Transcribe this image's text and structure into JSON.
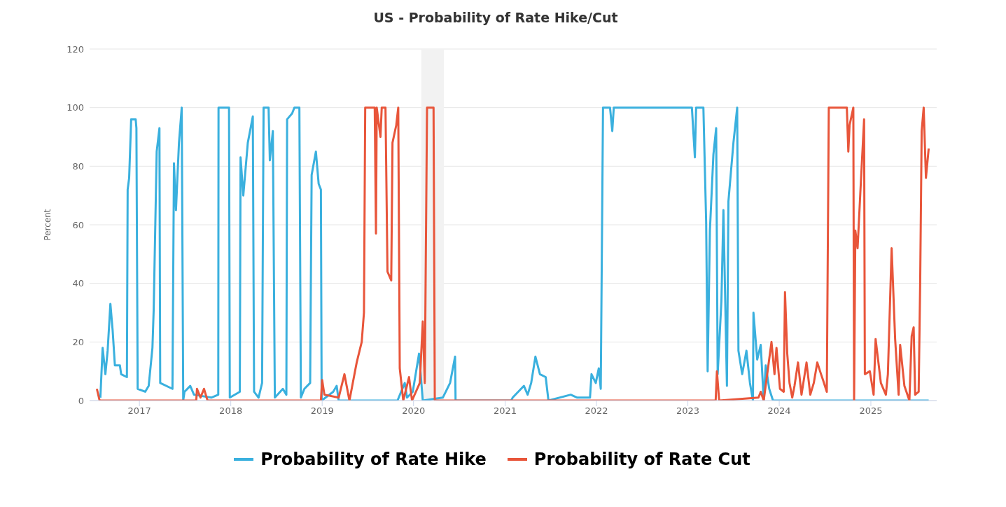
{
  "chart_data": {
    "type": "line",
    "title": "US - Probability of Rate Hike/Cut",
    "ylabel": "Percent",
    "xlim": [
      "2016-06-16",
      "2025-09-21"
    ],
    "xticks": [
      "2017",
      "2018",
      "2019",
      "2020",
      "2021",
      "2022",
      "2023",
      "2024",
      "2025"
    ],
    "ylim": [
      0,
      120
    ],
    "yticks": [
      0,
      20,
      40,
      60,
      80,
      100,
      120
    ],
    "grid": "y",
    "legend": "bottom",
    "marker": "none",
    "line_style": "solid",
    "bands": [
      {
        "axis": "x",
        "from": "2020-02-01",
        "to": "2020-05-01",
        "color": "#f2f2f2"
      }
    ],
    "series": [
      {
        "name": "Probability of Rate Hike",
        "color": "#3ab0de",
        "x": [
          "2016-07-29",
          "2016-08-07",
          "2016-08-18",
          "2016-08-27",
          "2016-09-07",
          "2016-09-16",
          "2016-09-25",
          "2016-10-15",
          "2016-10-20",
          "2016-11-12",
          "2016-11-15",
          "2016-11-21",
          "2016-11-29",
          "2016-12-17",
          "2016-12-20",
          "2016-12-25",
          "2017-01-24",
          "2017-02-07",
          "2017-02-22",
          "2017-02-27",
          "2017-03-11",
          "2017-03-22",
          "2017-03-25",
          "2017-05-13",
          "2017-05-19",
          "2017-05-27",
          "2017-06-08",
          "2017-06-19",
          "2017-06-25",
          "2017-06-30",
          "2017-07-23",
          "2017-08-07",
          "2017-10-15",
          "2017-11-12",
          "2017-11-13",
          "2017-12-25",
          "2017-12-28",
          "2018-02-06",
          "2018-02-09",
          "2018-02-20",
          "2018-03-10",
          "2018-03-30",
          "2018-04-04",
          "2018-04-22",
          "2018-05-06",
          "2018-05-12",
          "2018-06-01",
          "2018-06-06",
          "2018-06-18",
          "2018-06-26",
          "2018-07-28",
          "2018-08-11",
          "2018-08-14",
          "2018-09-03",
          "2018-09-12",
          "2018-10-02",
          "2018-10-08",
          "2018-10-22",
          "2018-11-14",
          "2018-11-20",
          "2018-12-07",
          "2018-12-18",
          "2018-12-27",
          "2018-12-30",
          "2019-02-14",
          "2019-02-28",
          "2019-03-08",
          "2019-10-29",
          "2019-11-27",
          "2019-12-06",
          "2019-12-29",
          "2020-01-23",
          "2020-02-07",
          "2020-04-27",
          "2020-05-26",
          "2020-06-15",
          "2020-06-17",
          "2021-01-25",
          "2021-01-31",
          "2021-03-17",
          "2021-04-01",
          "2021-04-15",
          "2021-05-02",
          "2021-05-20",
          "2021-06-12",
          "2021-06-23",
          "2021-09-20",
          "2021-10-16",
          "2021-12-06",
          "2021-12-12",
          "2021-12-29",
          "2022-01-10",
          "2022-01-18",
          "2022-01-27",
          "2022-02-24",
          "2022-03-05",
          "2022-03-11",
          "2023-01-17",
          "2023-01-29",
          "2023-02-03",
          "2023-03-04",
          "2023-03-15",
          "2023-03-21",
          "2023-03-30",
          "2023-04-13",
          "2023-04-24",
          "2023-04-30",
          "2023-05-15",
          "2023-05-23",
          "2023-06-06",
          "2023-06-12",
          "2023-07-02",
          "2023-07-17",
          "2023-07-22",
          "2023-08-06",
          "2023-08-23",
          "2023-09-06",
          "2023-09-18",
          "2023-09-20",
          "2023-10-05",
          "2023-10-19",
          "2023-10-31",
          "2023-11-08",
          "2023-11-22",
          "2023-12-07",
          "2025-08-20"
        ],
        "values": [
          1,
          18,
          9,
          17,
          33,
          24,
          12,
          12,
          9,
          8,
          72,
          76,
          96,
          96,
          93,
          4,
          3,
          5,
          18,
          31,
          85,
          93,
          6,
          4,
          81,
          65,
          88,
          100,
          0,
          3,
          5,
          2,
          1,
          2,
          100,
          100,
          1,
          3,
          83,
          70,
          88,
          97,
          3,
          1,
          6,
          100,
          100,
          82,
          92,
          1,
          4,
          2,
          96,
          98,
          100,
          100,
          1,
          4,
          6,
          77,
          85,
          74,
          72,
          0,
          3,
          5,
          0,
          0,
          6,
          1,
          3,
          16,
          0,
          1,
          6,
          15,
          0,
          0,
          1,
          5,
          2,
          6,
          15,
          9,
          8,
          0,
          2,
          1,
          1,
          9,
          6,
          11,
          4,
          100,
          100,
          92,
          100,
          100,
          83,
          100,
          100,
          61,
          10,
          58,
          84,
          93,
          9,
          34,
          65,
          5,
          68,
          88,
          100,
          17,
          9,
          17,
          6,
          0,
          30,
          14,
          19,
          0,
          12,
          4,
          0,
          0
        ]
      },
      {
        "name": "Probability of Rate Cut",
        "color": "#e8553a",
        "x": [
          "2016-07-15",
          "2016-07-26",
          "2017-08-16",
          "2017-08-19",
          "2017-09-02",
          "2017-09-16",
          "2017-09-30",
          "2018-12-27",
          "2019-01-01",
          "2019-01-10",
          "2019-03-08",
          "2019-03-31",
          "2019-04-20",
          "2019-05-19",
          "2019-06-08",
          "2019-06-17",
          "2019-06-22",
          "2019-07-30",
          "2019-08-04",
          "2019-08-07",
          "2019-08-22",
          "2019-08-27",
          "2019-09-11",
          "2019-09-19",
          "2019-10-04",
          "2019-10-09",
          "2019-10-24",
          "2019-11-01",
          "2019-11-07",
          "2019-11-21",
          "2019-12-14",
          "2019-12-26",
          "2020-01-26",
          "2020-02-07",
          "2020-02-15",
          "2020-02-24",
          "2020-03-21",
          "2020-03-26",
          "2023-04-22",
          "2023-04-27",
          "2023-05-06",
          "2023-10-10",
          "2023-10-19",
          "2023-10-31",
          "2023-12-01",
          "2023-12-13",
          "2023-12-21",
          "2024-01-04",
          "2024-01-19",
          "2024-01-24",
          "2024-02-02",
          "2024-02-11",
          "2024-02-22",
          "2024-03-02",
          "2024-03-16",
          "2024-03-30",
          "2024-04-19",
          "2024-05-04",
          "2024-05-18",
          "2024-06-01",
          "2024-06-16",
          "2024-06-24",
          "2024-07-09",
          "2024-07-17",
          "2024-09-27",
          "2024-10-03",
          "2024-10-08",
          "2024-10-23",
          "2024-10-26",
          "2024-10-31",
          "2024-11-09",
          "2024-11-20",
          "2024-12-05",
          "2024-12-08",
          "2024-12-28",
          "2025-01-12",
          "2025-01-20",
          "2025-02-10",
          "2025-03-02",
          "2025-03-10",
          "2025-03-25",
          "2025-04-08",
          "2025-04-22",
          "2025-04-28",
          "2025-05-15",
          "2025-06-04",
          "2025-06-13",
          "2025-06-21",
          "2025-06-27",
          "2025-07-11",
          "2025-07-17",
          "2025-07-23",
          "2025-07-31",
          "2025-08-09",
          "2025-08-20"
        ],
        "values": [
          4,
          0,
          0,
          4,
          1,
          4,
          0,
          0,
          7,
          2,
          1,
          9,
          0,
          13,
          20,
          30,
          100,
          100,
          57,
          100,
          90,
          100,
          100,
          44,
          41,
          88,
          94,
          100,
          11,
          0,
          8,
          0,
          6,
          27,
          6,
          100,
          100,
          0,
          0,
          10,
          0,
          1,
          3,
          0,
          20,
          9,
          18,
          4,
          3,
          37,
          16,
          6,
          1,
          5,
          13,
          2,
          13,
          2,
          6,
          13,
          9,
          7,
          3,
          100,
          100,
          85,
          94,
          100,
          0,
          58,
          52,
          71,
          96,
          9,
          10,
          2,
          21,
          6,
          2,
          9,
          52,
          21,
          2,
          19,
          5,
          0,
          22,
          25,
          2,
          3,
          40,
          92,
          100,
          76,
          86
        ]
      }
    ]
  }
}
